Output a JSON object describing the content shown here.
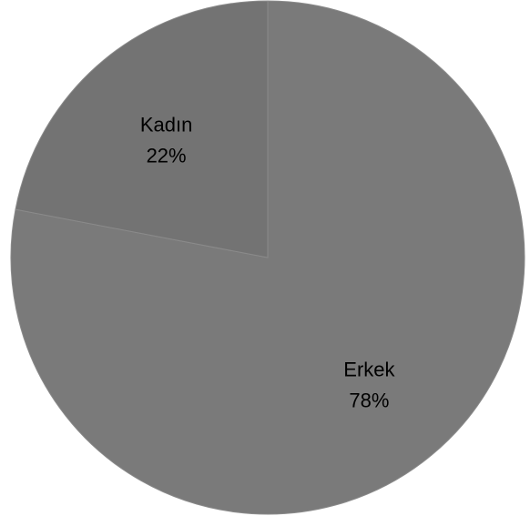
{
  "chart_data": {
    "type": "pie",
    "slices": [
      {
        "name": "Erkek",
        "value": 78,
        "percent_label": "78%",
        "color": "#7a7a7a"
      },
      {
        "name": "Kadın",
        "value": 22,
        "percent_label": "22%",
        "color": "#737373"
      }
    ],
    "start_angle": "12 o'clock",
    "direction": "clockwise",
    "title": "",
    "legend": "none"
  }
}
